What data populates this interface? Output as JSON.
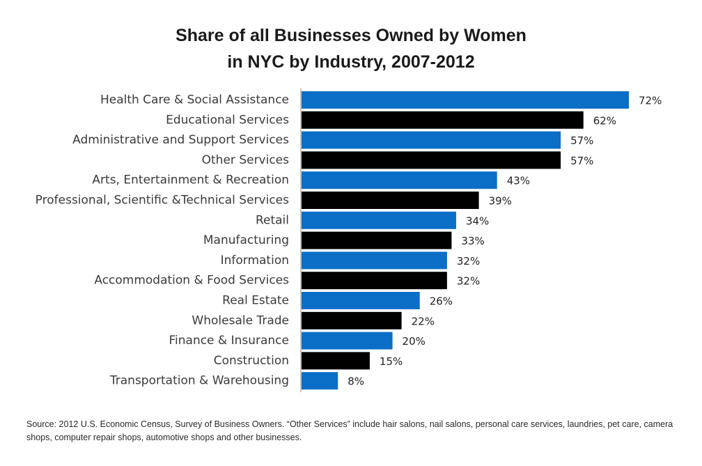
{
  "chart_data": {
    "type": "bar",
    "orientation": "horizontal",
    "title_line1": "Share of all Businesses Owned by Women",
    "title_line2": "in NYC by Industry, 2007-2012",
    "categories": [
      "Health Care & Social Assistance",
      "Educational Services",
      "Administrative and Support Services",
      "Other Services",
      "Arts, Entertainment & Recreation",
      "Professional, Scientific &Technical Services",
      "Retail",
      "Manufacturing",
      "Information",
      "Accommodation & Food Services",
      "Real Estate",
      "Wholesale Trade",
      "Finance & Insurance",
      "Construction",
      "Transportation & Warehousing"
    ],
    "values": [
      72,
      62,
      57,
      57,
      43,
      39,
      34,
      33,
      32,
      32,
      26,
      22,
      20,
      15,
      8
    ],
    "value_labels": [
      "72%",
      "62%",
      "57%",
      "57%",
      "43%",
      "39%",
      "34%",
      "33%",
      "32%",
      "32%",
      "26%",
      "22%",
      "20%",
      "15%",
      "8%"
    ],
    "unit": "%",
    "xlim": [
      0,
      100
    ],
    "bar_colors": [
      "#0a6ec7",
      "#000000"
    ],
    "axis_color": "#b0b0b0",
    "grid": false,
    "legend": false
  },
  "source_note": "Source: 2012 U.S. Economic Census, Survey of Business Owners. “Other Services” include hair salons, nail salons, personal care services, laundries, pet care, camera shops, computer repair shops, automotive shops and other businesses."
}
